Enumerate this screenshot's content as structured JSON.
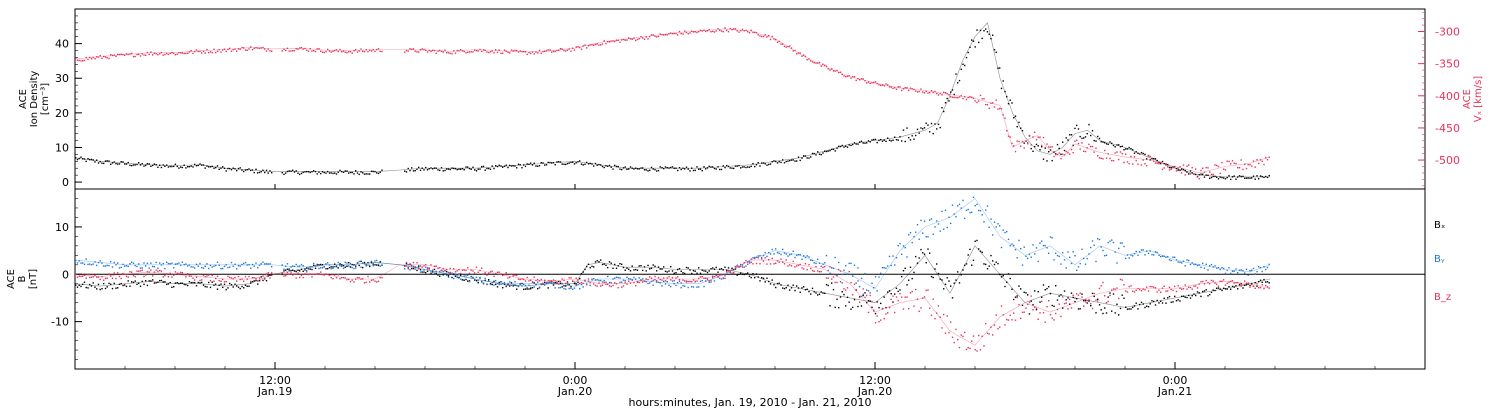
{
  "figure": {
    "xlabel": "hours:minutes, Jan. 19, 2010 - Jan. 21, 2010",
    "x_range_hours": [
      0,
      54
    ],
    "x_ticks": [
      {
        "hour": 8,
        "time": "12:00",
        "date": "Jan.19"
      },
      {
        "hour": 20,
        "time": "0:00",
        "date": "Jan.20"
      },
      {
        "hour": 32,
        "time": "12:00",
        "date": "Jan.20"
      },
      {
        "hour": 44,
        "time": "0:00",
        "date": "Jan.21"
      }
    ],
    "colors": {
      "black": "#000000",
      "red": "#e8325a",
      "blue": "#1e78dc"
    }
  },
  "chart_data": [
    {
      "type": "scatter",
      "panel": "top",
      "ylabel_lines": [
        "ACE",
        "Ion Density",
        "[cm⁻³]"
      ],
      "y2label_lines": [
        "ACE",
        "Vₓ [km/s]"
      ],
      "ylim": [
        -2,
        50
      ],
      "yticks": [
        0,
        10,
        20,
        30,
        40
      ],
      "y2lim": [
        -545,
        -265
      ],
      "y2ticks": [
        -300,
        -350,
        -400,
        -450,
        -500
      ],
      "series": [
        {
          "axis": "left",
          "color": "black",
          "x": [
            0,
            1,
            2,
            3,
            4,
            5,
            6,
            7,
            7.9,
            9,
            10,
            11,
            12,
            13,
            14,
            15,
            16,
            17,
            18,
            19,
            20,
            21,
            22,
            23,
            24,
            25,
            26,
            27,
            28,
            29,
            30,
            31,
            32,
            33,
            34,
            34.5,
            35,
            35.5,
            36,
            36.5,
            37,
            37.5,
            38,
            38.5,
            39,
            39.5,
            40,
            40.5,
            41,
            42,
            43,
            44,
            45,
            46,
            47,
            47.8
          ],
          "y": [
            7,
            6,
            5.5,
            5,
            4.8,
            5,
            4,
            3.5,
            3,
            3,
            3,
            3,
            3,
            3.5,
            4,
            4,
            4,
            4.5,
            5,
            5.5,
            6,
            5,
            4,
            4,
            4,
            4,
            4.5,
            5,
            6,
            7,
            9,
            11,
            12,
            13,
            15,
            17,
            25,
            35,
            42,
            46,
            30,
            20,
            13,
            9,
            8,
            10,
            14,
            15,
            12,
            10,
            7,
            4,
            2,
            1.5,
            1.5,
            1.5
          ]
        },
        {
          "axis": "right",
          "color": "red",
          "x": [
            0,
            1,
            2,
            3,
            4,
            5,
            6,
            7,
            7.9,
            9,
            10,
            11,
            12,
            13,
            14,
            15,
            16,
            17,
            18,
            19,
            20,
            21,
            22,
            23,
            24,
            25,
            26,
            27,
            28,
            29,
            30,
            31,
            32,
            33,
            34,
            35,
            36,
            36.5,
            37,
            37.5,
            38,
            38.5,
            39,
            39.5,
            40,
            41,
            42,
            43,
            44,
            45,
            46,
            47,
            47.8
          ],
          "y": [
            -343,
            -339,
            -336,
            -333,
            -333,
            -330,
            -328,
            -325,
            -327,
            -326,
            -329,
            -330,
            -328,
            -328,
            -329,
            -331,
            -328,
            -330,
            -332,
            -330,
            -326,
            -317,
            -312,
            -307,
            -302,
            -299,
            -296,
            -299,
            -311,
            -335,
            -355,
            -370,
            -380,
            -388,
            -392,
            -398,
            -404,
            -410,
            -415,
            -480,
            -470,
            -462,
            -485,
            -495,
            -475,
            -488,
            -495,
            -500,
            -510,
            -520,
            -510,
            -505,
            -495
          ]
        }
      ]
    },
    {
      "type": "scatter",
      "panel": "bottom",
      "ylabel_lines": [
        "ACE",
        "B",
        "[nT]"
      ],
      "ylim": [
        -20,
        18
      ],
      "yticks": [
        -10,
        0,
        10
      ],
      "series": [
        {
          "name": "Bₓ",
          "color": "black",
          "x": [
            0,
            1,
            2,
            3,
            4,
            5,
            6,
            7,
            7.9,
            9,
            10,
            11,
            12,
            13,
            14,
            15,
            16,
            17,
            18,
            19,
            20,
            20.5,
            21,
            22,
            23,
            24,
            25,
            26,
            27,
            28,
            29,
            30,
            31,
            32,
            33,
            34,
            35,
            36,
            37,
            38,
            39,
            40,
            41,
            42,
            43,
            44,
            45,
            46,
            47,
            47.8
          ],
          "y": [
            -2,
            -2.5,
            -2,
            -1.5,
            -2,
            -2,
            -2.5,
            -2,
            0,
            1,
            2,
            2,
            2.5,
            2,
            1,
            0,
            -1,
            -2,
            -2.5,
            -2,
            -2,
            2,
            2.5,
            1.5,
            1.5,
            1,
            1,
            1,
            0,
            -2,
            -3,
            -4,
            -5,
            -6,
            -2,
            4,
            -4,
            6,
            0,
            -6,
            -4,
            -5,
            -6,
            -7,
            -6,
            -5,
            -4,
            -3,
            -2,
            -1
          ]
        },
        {
          "name": "Bᵧ",
          "color": "blue",
          "x": [
            0,
            1,
            2,
            3,
            4,
            5,
            6,
            7,
            7.9,
            9,
            10,
            11,
            12,
            13,
            14,
            15,
            16,
            17,
            18,
            19,
            20,
            21,
            22,
            23,
            24,
            25,
            26,
            27,
            28,
            29,
            30,
            31,
            32,
            33,
            34,
            35,
            36,
            37,
            38,
            39,
            40,
            41,
            42,
            43,
            44,
            45,
            46,
            47,
            47.8
          ],
          "y": [
            3,
            2.5,
            2,
            2,
            2,
            2,
            2,
            2,
            2,
            1.5,
            2,
            2,
            2.5,
            2,
            1,
            0,
            -1,
            -2,
            -2,
            -2,
            -2.5,
            -1,
            -1,
            -1.5,
            -2,
            -2,
            0,
            3,
            5,
            4,
            2,
            0,
            -3,
            5,
            10,
            12,
            16,
            8,
            4,
            6,
            2,
            6,
            4,
            5,
            3,
            2,
            1,
            0.5,
            2
          ]
        },
        {
          "name": "B_z",
          "color": "red",
          "x": [
            0,
            1,
            2,
            3,
            4,
            5,
            6,
            7,
            7.9,
            9,
            10,
            11,
            12,
            13,
            14,
            15,
            16,
            17,
            18,
            19,
            20,
            21,
            22,
            23,
            24,
            25,
            26,
            27,
            28,
            29,
            30,
            31,
            32,
            33,
            34,
            35,
            36,
            37,
            38,
            39,
            40,
            41,
            42,
            43,
            44,
            45,
            46,
            47,
            47.8
          ],
          "y": [
            0,
            -0.5,
            0,
            0.5,
            0,
            -0.5,
            -1,
            -1,
            0,
            0,
            0,
            -1,
            -1,
            2,
            2,
            1,
            1,
            0,
            -1,
            -1.5,
            -1,
            -2,
            -2,
            -1,
            -1,
            -1,
            0,
            3,
            3,
            2,
            1,
            -2,
            -8,
            -6,
            -5,
            -12,
            -15,
            -9,
            -6,
            -8,
            -6,
            -4,
            -3,
            -3,
            -3,
            -2,
            -1.5,
            -2,
            -3
          ]
        }
      ]
    }
  ]
}
